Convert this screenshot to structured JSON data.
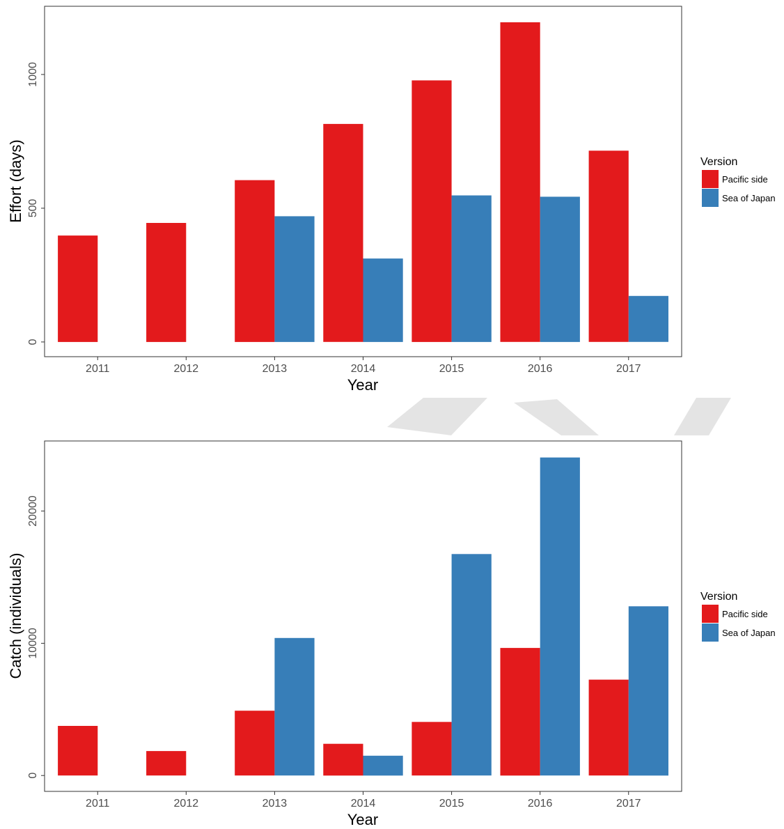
{
  "colors": {
    "pacific": "#E31A1C",
    "japan": "#377EB8",
    "watermark": "#e4e4e4"
  },
  "chart_data": [
    {
      "type": "bar",
      "categories": [
        "2011",
        "2012",
        "2013",
        "2014",
        "2015",
        "2016",
        "2017"
      ],
      "series": [
        {
          "name": "Pacific side",
          "values": [
            398,
            445,
            605,
            815,
            978,
            1195,
            715
          ]
        },
        {
          "name": "Sea of Japan",
          "values": [
            0,
            0,
            470,
            312,
            548,
            543,
            172
          ]
        }
      ],
      "title": "",
      "xlabel": "Year",
      "ylabel": "Effort (days)",
      "ylim": [
        -55,
        1255
      ],
      "yticks": [
        0,
        500,
        1000
      ],
      "grid": false,
      "legend": {
        "title": "Version",
        "position": "right"
      }
    },
    {
      "type": "bar",
      "categories": [
        "2011",
        "2012",
        "2013",
        "2014",
        "2015",
        "2016",
        "2017"
      ],
      "series": [
        {
          "name": "Pacific side",
          "values": [
            3750,
            1850,
            4900,
            2400,
            4050,
            9650,
            7250
          ]
        },
        {
          "name": "Sea of Japan",
          "values": [
            0,
            0,
            10400,
            1500,
            16750,
            24050,
            12800
          ]
        }
      ],
      "title": "",
      "xlabel": "Year",
      "ylabel": "Catch (individuals)",
      "ylim": [
        -1200,
        25300
      ],
      "yticks": [
        0,
        10000,
        20000
      ],
      "grid": false,
      "legend": {
        "title": "Version",
        "position": "right"
      }
    }
  ]
}
